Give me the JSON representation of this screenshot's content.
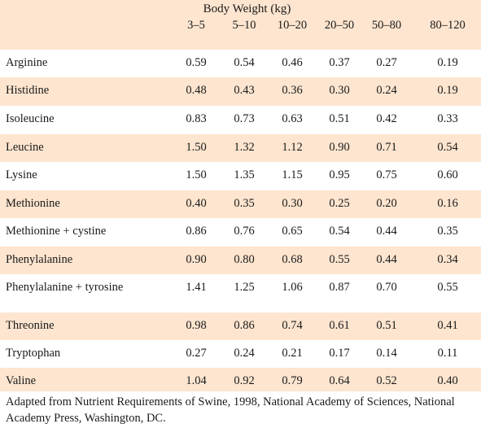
{
  "table": {
    "group_header": "Body Weight (kg)",
    "columns": [
      "3–5",
      "5–10",
      "10–20",
      "20–50",
      "50–80",
      "80–120"
    ],
    "rows": [
      {
        "name": "Arginine",
        "values": [
          "0.59",
          "0.54",
          "0.46",
          "0.37",
          "0.27",
          "0.19"
        ]
      },
      {
        "name": "Histidine",
        "values": [
          "0.48",
          "0.43",
          "0.36",
          "0.30",
          "0.24",
          "0.19"
        ]
      },
      {
        "name": "Isoleucine",
        "values": [
          "0.83",
          "0.73",
          "0.63",
          "0.51",
          "0.42",
          "0.33"
        ]
      },
      {
        "name": "Leucine",
        "values": [
          "1.50",
          "1.32",
          "1.12",
          "0.90",
          "0.71",
          "0.54"
        ]
      },
      {
        "name": "Lysine",
        "values": [
          "1.50",
          "1.35",
          "1.15",
          "0.95",
          "0.75",
          "0.60"
        ]
      },
      {
        "name": "Methionine",
        "values": [
          "0.40",
          "0.35",
          "0.30",
          "0.25",
          "0.20",
          "0.16"
        ]
      },
      {
        "name": "Methionine + cystine",
        "values": [
          "0.86",
          "0.76",
          "0.65",
          "0.54",
          "0.44",
          "0.35"
        ]
      },
      {
        "name": "Phenylalanine",
        "values": [
          "0.90",
          "0.80",
          "0.68",
          "0.55",
          "0.44",
          "0.34"
        ]
      },
      {
        "name": "Phenylalanine + tyrosine",
        "values": [
          "1.41",
          "1.25",
          "1.06",
          "0.87",
          "0.70",
          "0.55"
        ]
      },
      {
        "name": "Threonine",
        "values": [
          "0.98",
          "0.86",
          "0.74",
          "0.61",
          "0.51",
          "0.41"
        ]
      },
      {
        "name": "Tryptophan",
        "values": [
          "0.27",
          "0.24",
          "0.21",
          "0.17",
          "0.14",
          "0.11"
        ]
      },
      {
        "name": "Valine",
        "values": [
          "1.04",
          "0.92",
          "0.79",
          "0.64",
          "0.52",
          "0.40"
        ]
      }
    ]
  },
  "footnote": "Adapted from Nutrient Requirements of Swine, 1998, National Academy of Sciences, National Academy Press, Washington, DC.",
  "colors": {
    "shade": "#fde5cf",
    "plain": "#ffffff",
    "text": "#1a1a1a"
  }
}
